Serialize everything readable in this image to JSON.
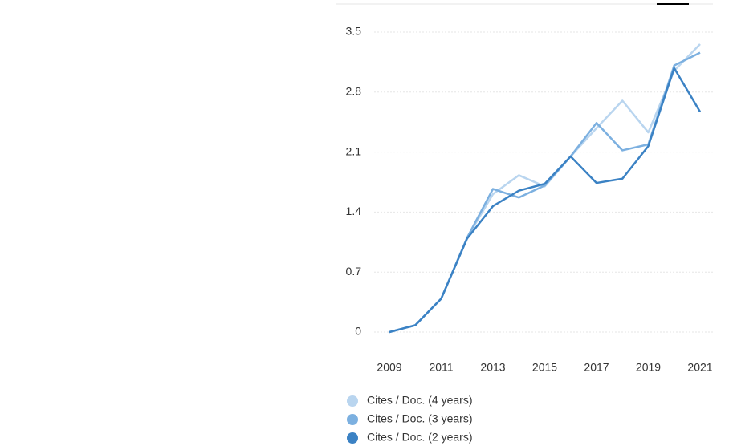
{
  "chart_data": {
    "type": "line",
    "x": [
      2009,
      2010,
      2011,
      2012,
      2013,
      2014,
      2015,
      2016,
      2017,
      2018,
      2019,
      2020,
      2021
    ],
    "xlim": [
      2009,
      2021
    ],
    "xticks": [
      2009,
      2011,
      2013,
      2015,
      2017,
      2019,
      2021
    ],
    "ylim": [
      0,
      3.5
    ],
    "yticks": [
      0,
      0.7,
      1.4,
      2.1,
      2.8,
      3.5
    ],
    "grid": true,
    "legend": "bottom-left",
    "series": [
      {
        "name": "Cites / Doc. (4 years)",
        "color": "#b9d5ef",
        "values": [
          0,
          0.08,
          0.39,
          1.1,
          1.61,
          1.83,
          1.7,
          2.05,
          2.38,
          2.7,
          2.33,
          3.05,
          3.36
        ]
      },
      {
        "name": "Cites / Doc. (3 years)",
        "color": "#7cb0e0",
        "values": [
          0,
          0.08,
          0.39,
          1.1,
          1.67,
          1.57,
          1.71,
          2.05,
          2.44,
          2.12,
          2.19,
          3.11,
          3.26
        ]
      },
      {
        "name": "Cites / Doc. (2 years)",
        "color": "#3b82c4",
        "values": [
          0,
          0.08,
          0.39,
          1.09,
          1.47,
          1.65,
          1.73,
          2.05,
          1.74,
          1.79,
          2.17,
          3.08,
          2.57
        ]
      }
    ]
  }
}
